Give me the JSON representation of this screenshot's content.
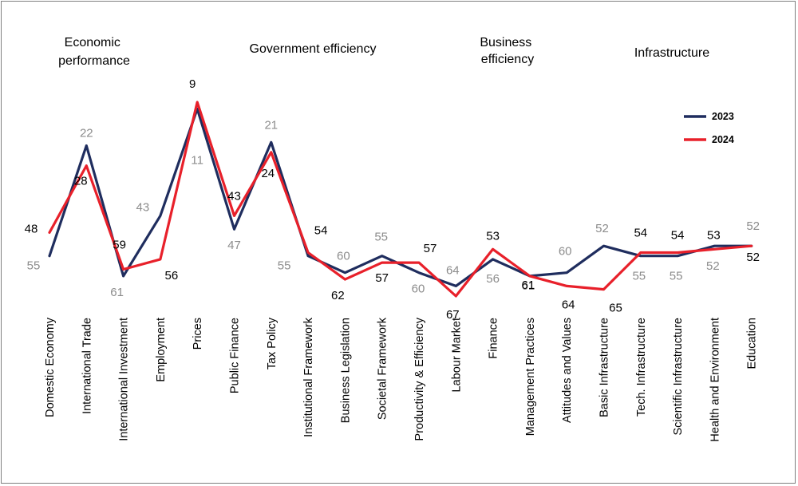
{
  "chart_data": {
    "type": "line",
    "title": "",
    "xlabel": "",
    "ylabel": "",
    "ylim": [
      0,
      65
    ],
    "y_inverted": true,
    "grid": false,
    "legend_position": "top-right",
    "groups": [
      {
        "label_lines": [
          "Economic",
          "performance"
        ]
      },
      {
        "label_lines": [
          "Government efficiency"
        ]
      },
      {
        "label_lines": [
          "Business",
          "efficiency"
        ]
      },
      {
        "label_lines": [
          "Infrastructure"
        ]
      }
    ],
    "categories": [
      "Domestic Economy",
      "International Trade",
      "International Investment",
      "Employment",
      "Prices",
      "Public Finance",
      "Tax Policy",
      "Institutional Framework",
      "Business Legislation",
      "Societal Framework",
      "Productivity & Efficiency",
      "Labour Market",
      "Finance",
      "Management Practices",
      "Attitudes and Values",
      "Basic Infrastructure",
      "Tech. Infrastructure",
      "Scientific Infrastructure",
      "Health and Environment",
      "Education"
    ],
    "series": [
      {
        "name": "2023",
        "color": "#1f2d5e",
        "label_color": "#8c8c8c",
        "values": [
          55,
          22,
          61,
          43,
          11,
          47,
          21,
          55,
          60,
          55,
          60,
          64,
          56,
          61,
          60,
          52,
          55,
          55,
          52,
          52
        ],
        "labels": [
          "55",
          "22",
          "61",
          "43",
          "11",
          "47",
          "21",
          "55",
          "60",
          "55",
          "60",
          "64",
          "56",
          "61",
          "60",
          "52",
          "55",
          "55",
          "52",
          "52"
        ]
      },
      {
        "name": "2024",
        "color": "#e8202a",
        "label_color": "#000000",
        "values": [
          48,
          28,
          59,
          56,
          9,
          43,
          24,
          54,
          62,
          57,
          57,
          67,
          53,
          61,
          64,
          65,
          54,
          54,
          53,
          52
        ],
        "labels": [
          "48",
          "28",
          "59",
          "56",
          "9",
          "43",
          "24",
          "54",
          "62",
          "57",
          "57",
          "67",
          "53",
          "61",
          "64",
          "65",
          "54",
          "54",
          "53",
          "52"
        ]
      }
    ]
  }
}
